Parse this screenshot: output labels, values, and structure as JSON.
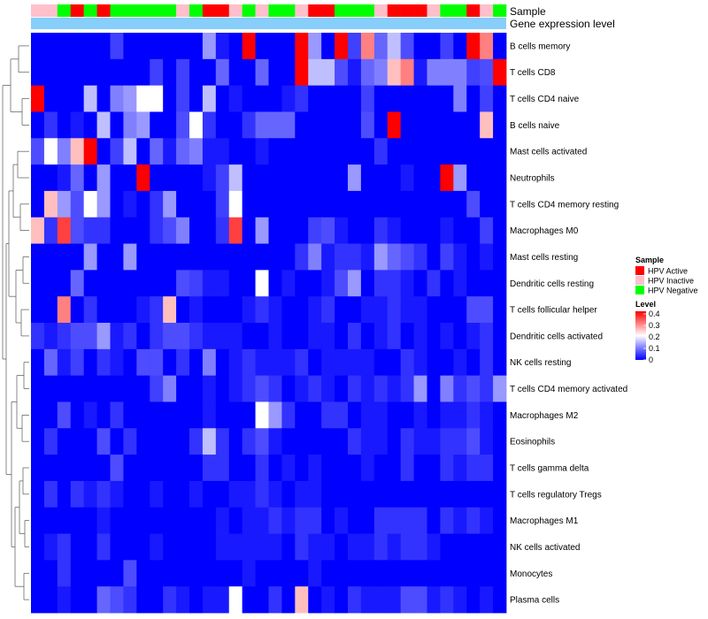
{
  "chart_data": {
    "type": "heatmap",
    "title": "",
    "annotation_labels": {
      "sample": "Sample",
      "expression": "Gene expression level"
    },
    "sample_colors": {
      "HPV Active": "#ff0000",
      "HPV Inactive": "#ffc0cb",
      "HPV Negative": "#00ff00"
    },
    "expression_bar_color": "#87cefa",
    "samples": [
      "HPV Inactive",
      "HPV Inactive",
      "HPV Negative",
      "HPV Active",
      "HPV Negative",
      "HPV Active",
      "HPV Negative",
      "HPV Negative",
      "HPV Negative",
      "HPV Negative",
      "HPV Negative",
      "HPV Inactive",
      "HPV Negative",
      "HPV Active",
      "HPV Active",
      "HPV Inactive",
      "HPV Negative",
      "HPV Inactive",
      "HPV Negative",
      "HPV Negative",
      "HPV Inactive",
      "HPV Active",
      "HPV Active",
      "HPV Negative",
      "HPV Negative",
      "HPV Negative",
      "HPV Inactive",
      "HPV Active",
      "HPV Active",
      "HPV Active",
      "HPV Inactive",
      "HPV Negative",
      "HPV Negative",
      "HPV Active",
      "HPV Inactive",
      "HPV Negative"
    ],
    "rows": [
      "B cells memory",
      "T cells CD8",
      "T cells CD4 naive",
      "B cells naive",
      "Mast cells activated",
      "Neutrophils",
      "T cells CD4 memory resting",
      "Macrophages M0",
      "Mast cells resting",
      "Dendritic cells resting",
      "T cells follicular helper",
      "Dendritic cells activated",
      "NK cells resting",
      "T cells CD4 memory activated",
      "Macrophages M2",
      "Eosinophils",
      "T cells gamma delta",
      "T cells regulatory  Tregs",
      "Macrophages M1",
      "NK cells activated",
      "Monocytes",
      "Plasma cells"
    ],
    "values": [
      [
        0,
        0,
        0,
        0,
        0,
        0,
        0.05,
        0,
        0,
        0,
        0,
        0,
        0,
        0.12,
        0.02,
        0,
        0.4,
        0,
        0,
        0,
        0.4,
        0.12,
        0,
        0.4,
        0.05,
        0.3,
        0.08,
        0.15,
        0.06,
        0,
        0,
        0.05,
        0,
        0.4,
        0.3,
        0
      ],
      [
        0,
        0,
        0,
        0,
        0,
        0,
        0,
        0,
        0,
        0.05,
        0,
        0.05,
        0,
        0,
        0.08,
        0,
        0,
        0.08,
        0,
        0,
        0.4,
        0.15,
        0.15,
        0.06,
        0.02,
        0.08,
        0.1,
        0.25,
        0.3,
        0.02,
        0.1,
        0.1,
        0.1,
        0.05,
        0.06,
        0.4
      ],
      [
        0.4,
        0,
        0,
        0,
        0.15,
        0,
        0.1,
        0.12,
        0.2,
        0.2,
        0,
        0.05,
        0,
        0.15,
        0,
        0.02,
        0,
        0,
        0,
        0.02,
        0.04,
        0,
        0,
        0,
        0,
        0.05,
        0,
        0,
        0,
        0,
        0,
        0,
        0.1,
        0,
        0.05,
        0
      ],
      [
        0,
        0.04,
        0,
        0.02,
        0,
        0.15,
        0,
        0.1,
        0.12,
        0,
        0,
        0.06,
        0.2,
        0.04,
        0,
        0,
        0.04,
        0.08,
        0.08,
        0.08,
        0,
        0,
        0,
        0,
        0,
        0.06,
        0,
        0.4,
        0,
        0,
        0,
        0,
        0,
        0,
        0.25,
        0
      ],
      [
        0.06,
        0.2,
        0.1,
        0.25,
        0.4,
        0,
        0.05,
        0.15,
        0,
        0.08,
        0.02,
        0.08,
        0.1,
        0.02,
        0.02,
        0,
        0,
        0.02,
        0,
        0,
        0,
        0,
        0,
        0,
        0,
        0,
        0.04,
        0,
        0,
        0,
        0,
        0,
        0,
        0,
        0,
        0
      ],
      [
        0,
        0,
        0.02,
        0.08,
        0,
        0.12,
        0,
        0,
        0.4,
        0,
        0,
        0,
        0,
        0.02,
        0.05,
        0.15,
        0,
        0,
        0,
        0,
        0,
        0,
        0,
        0,
        0.12,
        0,
        0,
        0,
        0.02,
        0,
        0,
        0.4,
        0.12,
        0,
        0,
        0
      ],
      [
        0,
        0.25,
        0.12,
        0.06,
        0.2,
        0.12,
        0,
        0.02,
        0,
        0.04,
        0.12,
        0,
        0,
        0,
        0.05,
        0.2,
        0,
        0,
        0,
        0,
        0,
        0,
        0,
        0,
        0,
        0,
        0,
        0,
        0,
        0,
        0,
        0,
        0,
        0.06,
        0,
        0
      ],
      [
        0.25,
        0.04,
        0.35,
        0.06,
        0.04,
        0.04,
        0,
        0,
        0,
        0.04,
        0.06,
        0.1,
        0,
        0,
        0.04,
        0.35,
        0,
        0.12,
        0,
        0,
        0,
        0.05,
        0.06,
        0.02,
        0,
        0,
        0.04,
        0.02,
        0,
        0,
        0,
        0.02,
        0,
        0,
        0.05,
        0
      ],
      [
        0,
        0,
        0,
        0,
        0.12,
        0,
        0,
        0.12,
        0,
        0,
        0,
        0,
        0,
        0,
        0,
        0,
        0,
        0,
        0,
        0,
        0.04,
        0.1,
        0.02,
        0.04,
        0.04,
        0.02,
        0.12,
        0.08,
        0.06,
        0.04,
        0,
        0.05,
        0.02,
        0,
        0.02,
        0
      ],
      [
        0,
        0,
        0,
        0.08,
        0,
        0,
        0,
        0,
        0,
        0,
        0,
        0.06,
        0.05,
        0.02,
        0.02,
        0,
        0,
        0.2,
        0,
        0.02,
        0,
        0,
        0.02,
        0.06,
        0.12,
        0,
        0.04,
        0.04,
        0.02,
        0,
        0.04,
        0,
        0.02,
        0,
        0,
        0
      ],
      [
        0,
        0,
        0.3,
        0,
        0.04,
        0,
        0,
        0,
        0.02,
        0.04,
        0.25,
        0,
        0.02,
        0,
        0,
        0,
        0.02,
        0.04,
        0.02,
        0,
        0,
        0.02,
        0.04,
        0,
        0,
        0.02,
        0.02,
        0.04,
        0.02,
        0.02,
        0,
        0,
        0,
        0.06,
        0.06,
        0
      ],
      [
        0.04,
        0.02,
        0.04,
        0.06,
        0.06,
        0.12,
        0.02,
        0.04,
        0,
        0.04,
        0.06,
        0.06,
        0.04,
        0.02,
        0.02,
        0.02,
        0,
        0,
        0.02,
        0,
        0,
        0.02,
        0.02,
        0,
        0.04,
        0,
        0.02,
        0.04,
        0,
        0.02,
        0,
        0.02,
        0,
        0.02,
        0.04,
        0
      ],
      [
        0,
        0.08,
        0.02,
        0.05,
        0,
        0.04,
        0.02,
        0,
        0.06,
        0.06,
        0,
        0.04,
        0,
        0.1,
        0,
        0.02,
        0.04,
        0.02,
        0.02,
        0.02,
        0.04,
        0,
        0.02,
        0.02,
        0.02,
        0.02,
        0,
        0,
        0.04,
        0.02,
        0,
        0,
        0.02,
        0,
        0.04,
        0
      ],
      [
        0,
        0,
        0,
        0,
        0,
        0,
        0,
        0,
        0,
        0.05,
        0.1,
        0,
        0,
        0.02,
        0,
        0.02,
        0.04,
        0.06,
        0.04,
        0,
        0.02,
        0.04,
        0.02,
        0,
        0.04,
        0.02,
        0.04,
        0.02,
        0.04,
        0.12,
        0,
        0.1,
        0.04,
        0.06,
        0.04,
        0.12
      ],
      [
        0,
        0,
        0.06,
        0,
        0.02,
        0,
        0.04,
        0,
        0,
        0,
        0,
        0,
        0,
        0.02,
        0,
        0,
        0,
        0.2,
        0.12,
        0.04,
        0,
        0,
        0.04,
        0.04,
        0,
        0.02,
        0.02,
        0,
        0,
        0.02,
        0,
        0.02,
        0.02,
        0.04,
        0.02,
        0
      ],
      [
        0,
        0.04,
        0,
        0,
        0,
        0.06,
        0,
        0.04,
        0,
        0,
        0,
        0,
        0.04,
        0.15,
        0.04,
        0,
        0.04,
        0.06,
        0.02,
        0,
        0,
        0,
        0,
        0,
        0.04,
        0.02,
        0.02,
        0,
        0.04,
        0.02,
        0.02,
        0.04,
        0.04,
        0.06,
        0.02,
        0
      ],
      [
        0,
        0,
        0,
        0,
        0,
        0,
        0.06,
        0,
        0,
        0,
        0,
        0,
        0,
        0.04,
        0.04,
        0,
        0,
        0.04,
        0,
        0.02,
        0,
        0.02,
        0,
        0,
        0,
        0.02,
        0,
        0,
        0.04,
        0,
        0,
        0.04,
        0.02,
        0.04,
        0.04,
        0
      ],
      [
        0,
        0.04,
        0,
        0.04,
        0.02,
        0.04,
        0.02,
        0,
        0,
        0.02,
        0,
        0,
        0.02,
        0,
        0,
        0.02,
        0.02,
        0.04,
        0.02,
        0,
        0.02,
        0.02,
        0,
        0,
        0,
        0,
        0,
        0,
        0,
        0,
        0,
        0,
        0,
        0,
        0,
        0
      ],
      [
        0,
        0,
        0,
        0,
        0,
        0.02,
        0,
        0,
        0,
        0,
        0,
        0,
        0,
        0,
        0.02,
        0,
        0.02,
        0.02,
        0.04,
        0.02,
        0.04,
        0.04,
        0,
        0.02,
        0,
        0,
        0.04,
        0.04,
        0.04,
        0.04,
        0,
        0.04,
        0.02,
        0.04,
        0.02,
        0
      ],
      [
        0,
        0.02,
        0.04,
        0,
        0,
        0.04,
        0,
        0,
        0,
        0.02,
        0,
        0,
        0,
        0,
        0.02,
        0.02,
        0.02,
        0.02,
        0.02,
        0,
        0.04,
        0.02,
        0.02,
        0,
        0.02,
        0.02,
        0.04,
        0.02,
        0.04,
        0.04,
        0.02,
        0,
        0,
        0,
        0,
        0
      ],
      [
        0,
        0,
        0.04,
        0,
        0,
        0,
        0,
        0.06,
        0,
        0,
        0,
        0,
        0,
        0,
        0,
        0,
        0.02,
        0,
        0,
        0,
        0,
        0.02,
        0,
        0,
        0,
        0,
        0,
        0,
        0,
        0,
        0,
        0,
        0,
        0,
        0,
        0
      ],
      [
        0,
        0,
        0.02,
        0,
        0,
        0.08,
        0.06,
        0.04,
        0,
        0,
        0.04,
        0.02,
        0,
        0.02,
        0.02,
        0.2,
        0,
        0,
        0.04,
        0,
        0.25,
        0,
        0.02,
        0,
        0.04,
        0.02,
        0.02,
        0.02,
        0.06,
        0.06,
        0.02,
        0.04,
        0.02,
        0,
        0.02,
        0
      ]
    ],
    "legend_sample": {
      "title": "Sample",
      "entries": [
        "HPV Active",
        "HPV Inactive",
        "HPV Negative"
      ]
    },
    "legend_level": {
      "title": "Level",
      "ticks": [
        0.4,
        0.3,
        0.2,
        0.1,
        0
      ],
      "tick_labels": [
        "0.4",
        "0.3",
        "0.2",
        "0.1",
        "0"
      ],
      "range": [
        0,
        0.4
      ],
      "colors": [
        "#0000ff",
        "#ffffff",
        "#ff0000"
      ]
    }
  }
}
